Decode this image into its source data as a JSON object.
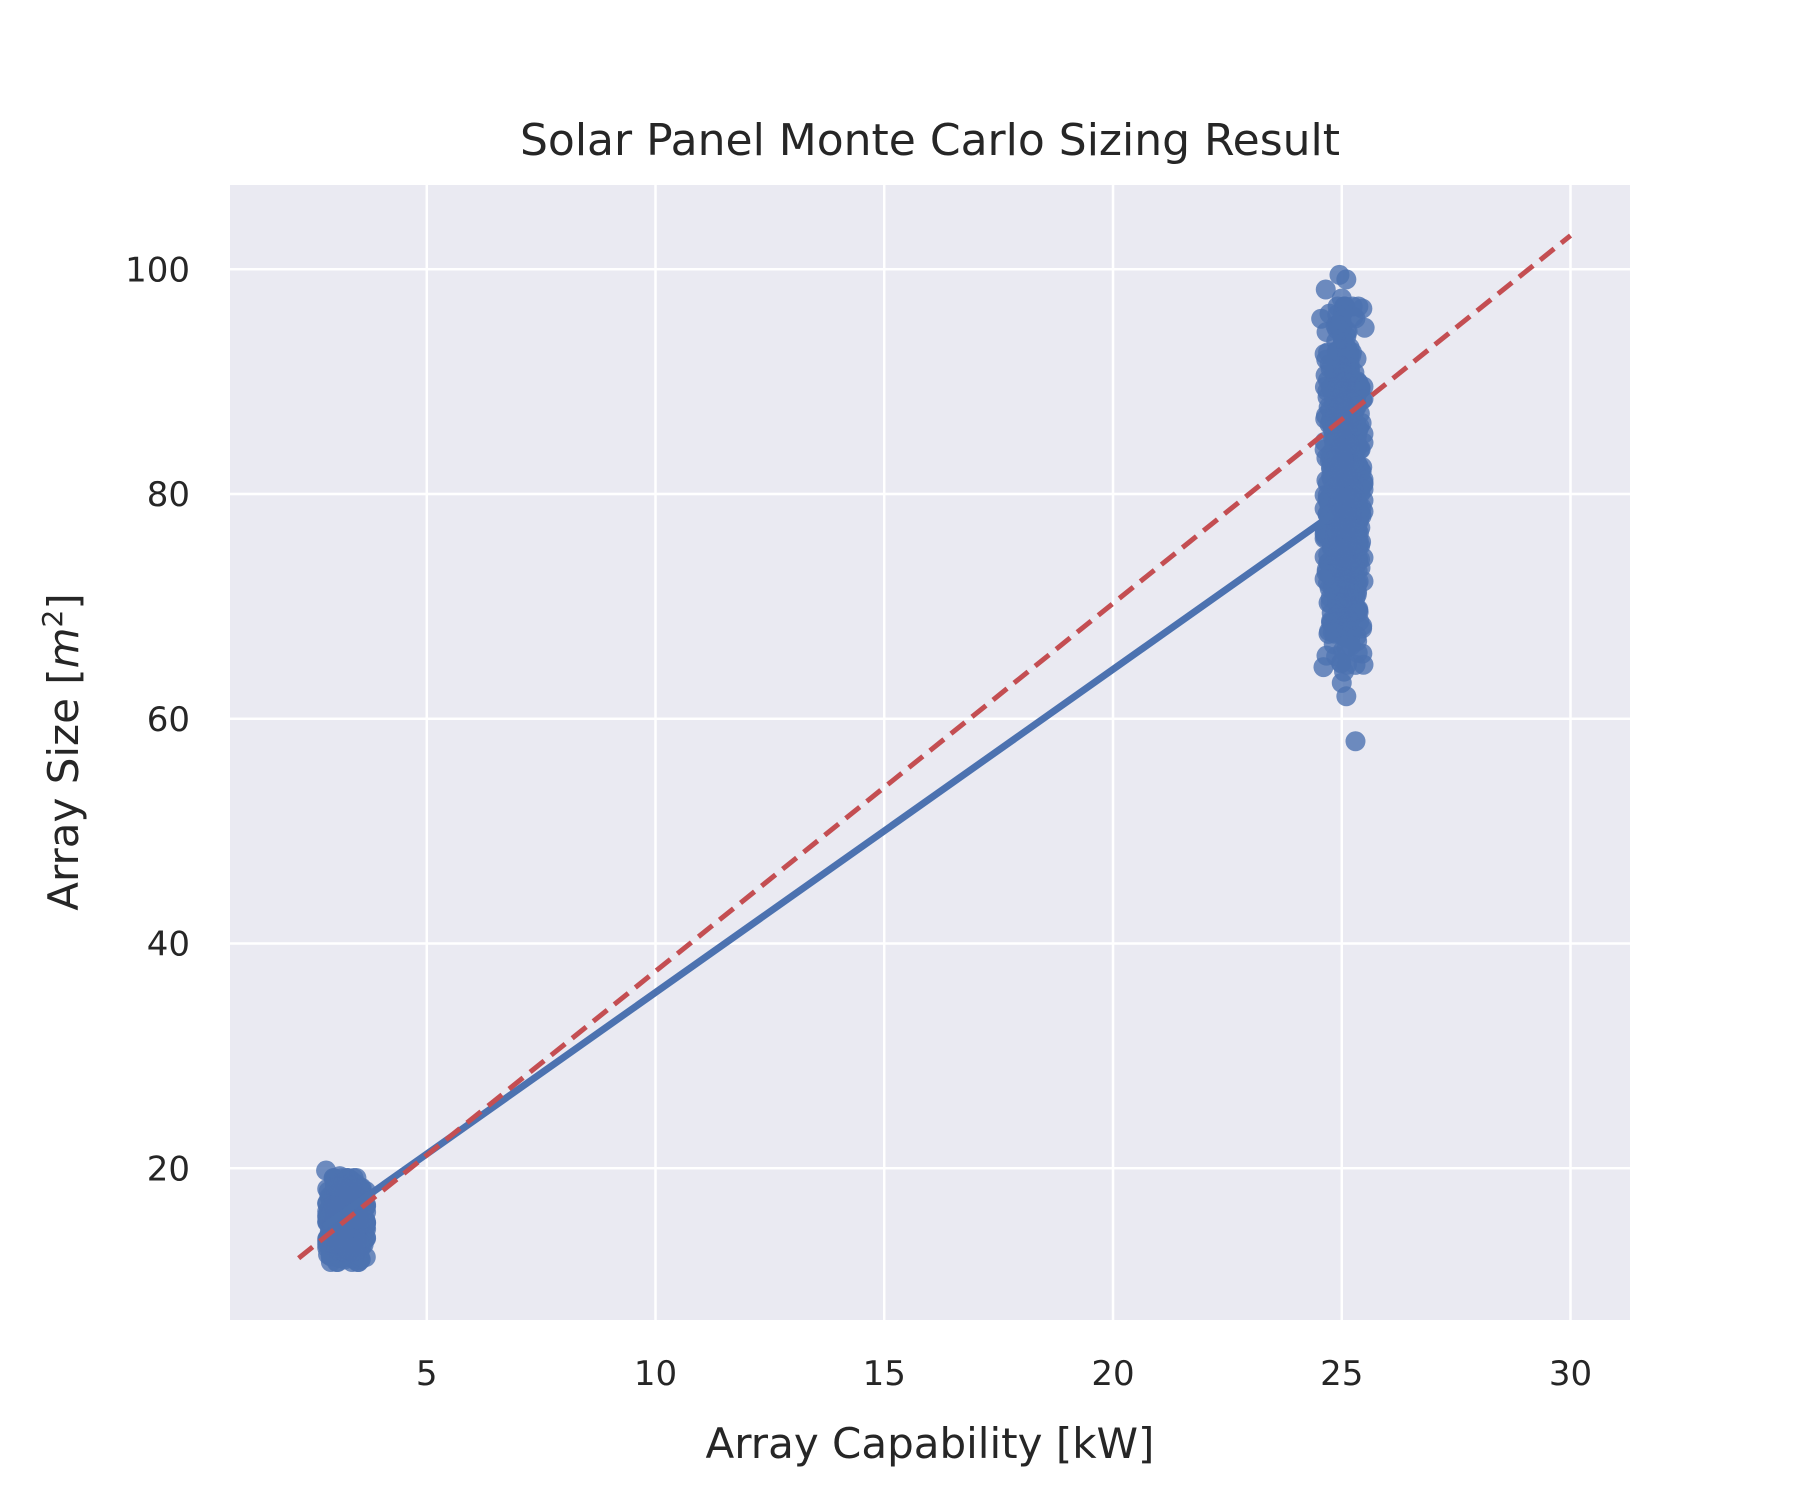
{
  "chart_data": {
    "type": "scatter",
    "title": "Solar Panel Monte Carlo Sizing Result",
    "xlabel": "Array Capability [kW]",
    "ylabel": {
      "prefix": "Array Size [",
      "var": "m",
      "sup": "2",
      "suffix": "]"
    },
    "xlim": [
      0.7,
      31.3
    ],
    "ylim": [
      6.5,
      107.5
    ],
    "xticks": [
      5,
      10,
      15,
      20,
      25,
      30
    ],
    "yticks": [
      20,
      40,
      60,
      80,
      100
    ],
    "grid": true,
    "style": {
      "background": "#eaeaf2",
      "grid": "#ffffff",
      "point": "#4c72b0",
      "fit": "#4c72b0",
      "reference": "#c44e52"
    },
    "clusters": [
      {
        "x_range": [
          2.75,
          3.75
        ],
        "y_range": [
          11,
          19.8
        ]
      },
      {
        "x_range": [
          24.55,
          25.55
        ],
        "y_range": [
          62,
          99.5
        ]
      }
    ],
    "points": [
      [
        2.8,
        19.8
      ],
      [
        3.1,
        19.3
      ],
      [
        3.0,
        18.4
      ],
      [
        3.5,
        18.2
      ],
      [
        3.3,
        17.5
      ],
      [
        24.95,
        99.5
      ],
      [
        25.1,
        99.1
      ],
      [
        24.65,
        98.2
      ],
      [
        25.0,
        97.4
      ],
      [
        24.55,
        95.6
      ],
      [
        25.45,
        96.5
      ],
      [
        25.5,
        94.8
      ],
      [
        25.2,
        66.5
      ],
      [
        25.45,
        65.8
      ],
      [
        25.3,
        64.8
      ],
      [
        24.6,
        64.6
      ],
      [
        25.05,
        64.2
      ],
      [
        25.0,
        63.2
      ],
      [
        25.1,
        62.0
      ],
      [
        25.3,
        58.0
      ]
    ],
    "series": [
      {
        "kind": "regression",
        "x": [
          2.75,
          24.8
        ],
        "y": [
          14.8,
          78.2
        ]
      },
      {
        "kind": "reference",
        "x": [
          2.2,
          30.0
        ],
        "y": [
          12.0,
          103.0
        ]
      }
    ]
  }
}
